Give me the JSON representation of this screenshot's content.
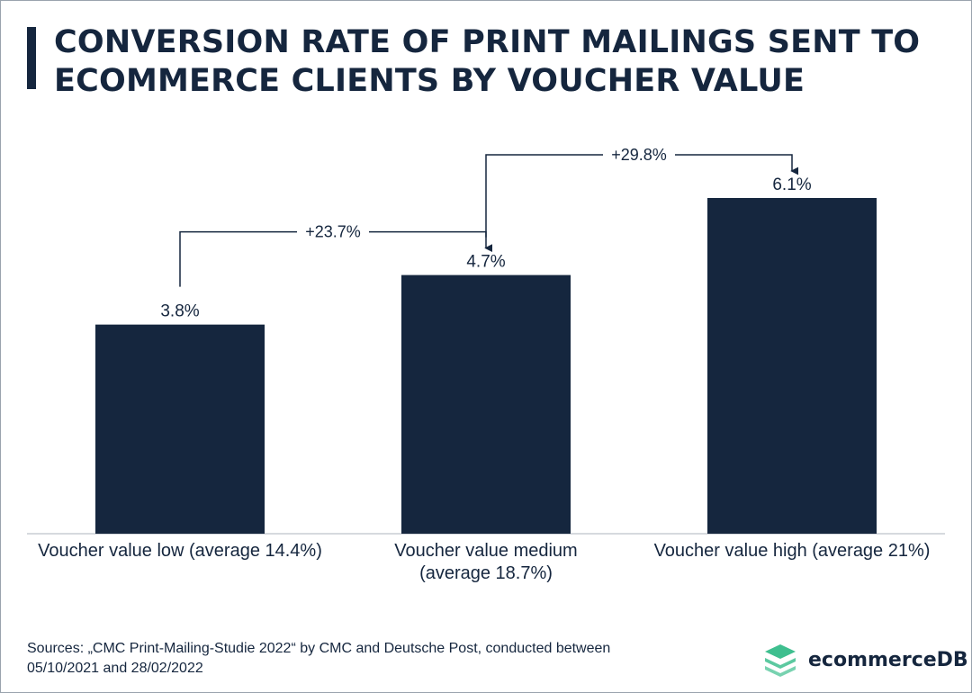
{
  "title": {
    "line1": "CONVERSION RATE OF PRINT MAILINGS SENT TO",
    "line2": "ECOMMERCE CLIENTS BY VOUCHER VALUE"
  },
  "chart_data": {
    "type": "bar",
    "title": "CONVERSION RATE OF PRINT MAILINGS SENT TO ECOMMERCE CLIENTS BY VOUCHER VALUE",
    "categories": [
      {
        "line1": "Voucher value low (average 14.4%)",
        "line2": ""
      },
      {
        "line1": "Voucher value medium",
        "line2": "(average 18.7%)"
      },
      {
        "line1": "Voucher value high (average 21%)",
        "line2": ""
      }
    ],
    "values": [
      3.8,
      4.7,
      6.1
    ],
    "value_labels": [
      "3.8%",
      "4.7%",
      "6.1%"
    ],
    "unit": "%",
    "annotations": [
      {
        "from": 0,
        "to": 1,
        "label": "+23.7%"
      },
      {
        "from": 1,
        "to": 2,
        "label": "+29.8%"
      }
    ],
    "ylim": [
      0,
      6.1
    ],
    "grid": false,
    "legend": "none",
    "bar_color": "#15263e"
  },
  "source": {
    "line1": "Sources: „CMC Print-Mailing-Studie 2022“ by CMC and Deutsche Post, conducted between",
    "line2": "05/10/2021 and 28/02/2022"
  },
  "logo": {
    "text": "ecommerceDB",
    "icon": "stacked-layers-icon",
    "icon_color": "#3fbf8f"
  }
}
